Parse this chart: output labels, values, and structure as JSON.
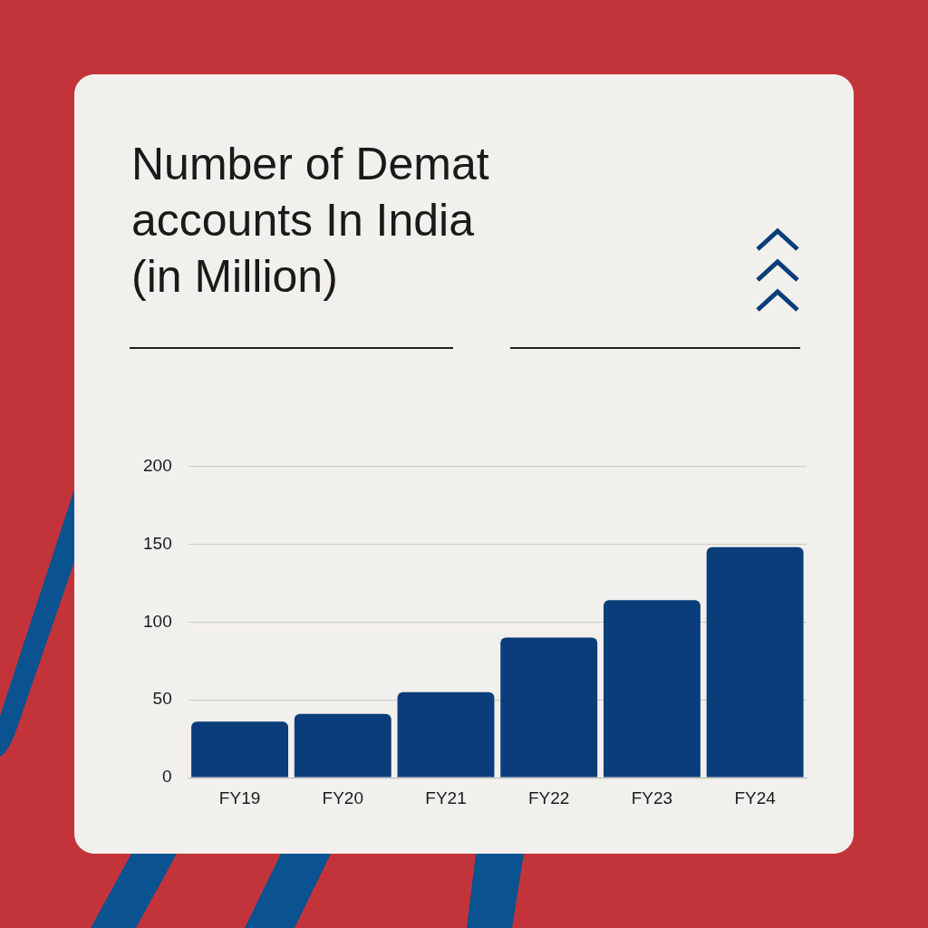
{
  "chart_data": {
    "type": "bar",
    "title": "Number of Demat accounts In India (in Million)",
    "categories": [
      "FY19",
      "FY20",
      "FY21",
      "FY22",
      "FY23",
      "FY24"
    ],
    "values": [
      36,
      41,
      55,
      90,
      114,
      148
    ],
    "color": "#0a3d7a",
    "ylim": [
      0,
      200
    ],
    "yticks": [
      0,
      50,
      100,
      150,
      200
    ],
    "grid": "y",
    "legend": false
  }
}
